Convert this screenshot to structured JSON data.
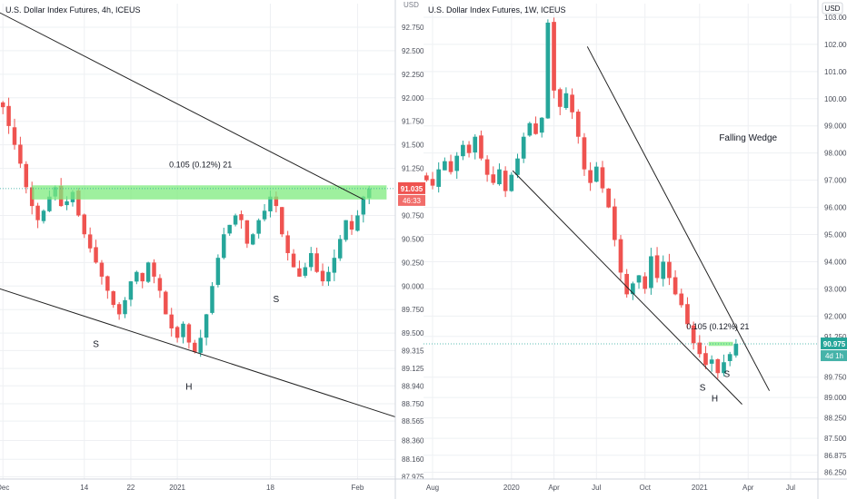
{
  "chart_data": [
    {
      "type": "candlestick",
      "title": "U.S. Dollar Index Futures, 4h, ICEUS",
      "x_ticks": [
        "Dec",
        "14",
        "22",
        "2021",
        "18",
        "Feb"
      ],
      "x_tick_index": [
        0,
        14,
        22,
        30,
        46,
        61
      ],
      "x_count": 68,
      "y_ticks": [
        "92.750",
        "92.500",
        "92.250",
        "92.000",
        "91.750",
        "91.500",
        "91.250",
        "90.750",
        "90.500",
        "90.250",
        "90.000",
        "89.750",
        "89.500",
        "89.315",
        "89.125",
        "88.940",
        "88.750",
        "88.565",
        "88.360",
        "88.160",
        "87.975"
      ],
      "y_tick_values": [
        92.75,
        92.5,
        92.25,
        92.0,
        91.75,
        91.5,
        91.25,
        90.75,
        90.5,
        90.25,
        90.0,
        89.75,
        89.5,
        89.315,
        89.125,
        88.94,
        88.75,
        88.565,
        88.36,
        88.16,
        87.975
      ],
      "ylim": [
        87.95,
        93.0
      ],
      "close": [
        91.9,
        91.7,
        91.5,
        91.3,
        91.05,
        90.85,
        90.7,
        90.8,
        90.95,
        91.05,
        90.85,
        90.9,
        91.0,
        90.75,
        90.55,
        90.4,
        90.25,
        90.1,
        89.95,
        89.8,
        89.7,
        89.85,
        90.05,
        90.15,
        90.05,
        90.25,
        90.1,
        89.95,
        89.7,
        89.55,
        89.45,
        89.6,
        89.4,
        89.3,
        89.45,
        89.7,
        90.0,
        90.3,
        90.55,
        90.65,
        90.75,
        90.7,
        90.45,
        90.55,
        90.7,
        90.8,
        90.95,
        90.85,
        90.55,
        90.35,
        90.2,
        90.1,
        90.2,
        90.35,
        90.15,
        90.05,
        90.15,
        90.3,
        90.5,
        90.7,
        90.6,
        90.75,
        90.95,
        91.035
      ],
      "price_label": "91.035",
      "countdown_label": "46:33",
      "zone_low": 90.92,
      "zone_high": 91.07,
      "measure_label": "0.105 (0.12%) 21",
      "annotations": [
        {
          "text": "S",
          "x_index": 16,
          "y": 89.35
        },
        {
          "text": "H",
          "x_index": 32,
          "y": 88.9
        },
        {
          "text": "S",
          "x_index": 47,
          "y": 89.83
        }
      ],
      "lines": [
        {
          "x": [
            -2,
            62
          ],
          "y": [
            92.95,
            90.92
          ]
        },
        {
          "x": [
            -2,
            68
          ],
          "y": [
            90.0,
            88.6
          ]
        }
      ]
    },
    {
      "type": "candlestick",
      "title": "U.S. Dollar Index Futures, 1W, ICEUS",
      "x_ticks": [
        "Aug",
        "2020",
        "Apr",
        "Jul",
        "Oct",
        "2021",
        "Apr",
        "Jul"
      ],
      "x_tick_index": [
        1,
        14,
        21,
        28,
        36,
        45,
        53,
        60
      ],
      "x_count": 65,
      "y_ticks": [
        "103.000",
        "102.000",
        "101.000",
        "100.000",
        "99.000",
        "98.000",
        "97.000",
        "96.000",
        "95.000",
        "94.000",
        "93.000",
        "92.000",
        "91.250",
        "89.750",
        "89.000",
        "88.250",
        "87.500",
        "86.875",
        "86.250"
      ],
      "y_tick_values": [
        103.0,
        102.0,
        101.0,
        100.0,
        99.0,
        98.0,
        97.0,
        96.0,
        95.0,
        94.0,
        93.0,
        92.0,
        91.25,
        89.75,
        89.0,
        88.25,
        87.5,
        86.875,
        86.25
      ],
      "ylim": [
        86.0,
        103.5
      ],
      "close": [
        97.0,
        96.8,
        97.4,
        97.7,
        97.3,
        97.9,
        98.3,
        98.0,
        98.6,
        97.8,
        97.2,
        96.9,
        97.4,
        96.6,
        97.2,
        97.8,
        98.6,
        99.1,
        98.7,
        99.3,
        102.8,
        100.3,
        99.7,
        100.2,
        99.5,
        98.6,
        97.4,
        96.9,
        97.5,
        96.7,
        96.0,
        94.8,
        93.6,
        92.8,
        93.2,
        93.5,
        93.0,
        94.2,
        93.4,
        94.0,
        93.4,
        92.8,
        92.4,
        91.7,
        91.0,
        90.6,
        90.2,
        90.4,
        89.9,
        90.3,
        90.6,
        90.975
      ],
      "price_label": "90.975",
      "countdown_label": "4d 1h",
      "zone_low": 90.9,
      "zone_high": 91.05,
      "measure_label": "0.105 (0.12%) 21",
      "annotations": [
        {
          "text": "Falling Wedge",
          "x_index": 53,
          "y": 98.45
        },
        {
          "text": "S",
          "x_index": 45.5,
          "y": 89.25
        },
        {
          "text": "H",
          "x_index": 47.5,
          "y": 88.85
        },
        {
          "text": "S",
          "x_index": 49.5,
          "y": 89.75
        }
      ],
      "lines": [
        {
          "x": [
            26.5,
            56.5
          ],
          "y": [
            101.92,
            89.25
          ]
        },
        {
          "x": [
            14.2,
            52.0
          ],
          "y": [
            97.35,
            88.75
          ]
        }
      ]
    }
  ],
  "ui": {
    "left_unit": "USD",
    "right_unit": "USD",
    "colors": {
      "up": "#26a69a",
      "down": "#ef5350",
      "zone": "#7deb7d",
      "grid": "#eef0f3",
      "line": "#222222",
      "text": "#131722"
    }
  }
}
